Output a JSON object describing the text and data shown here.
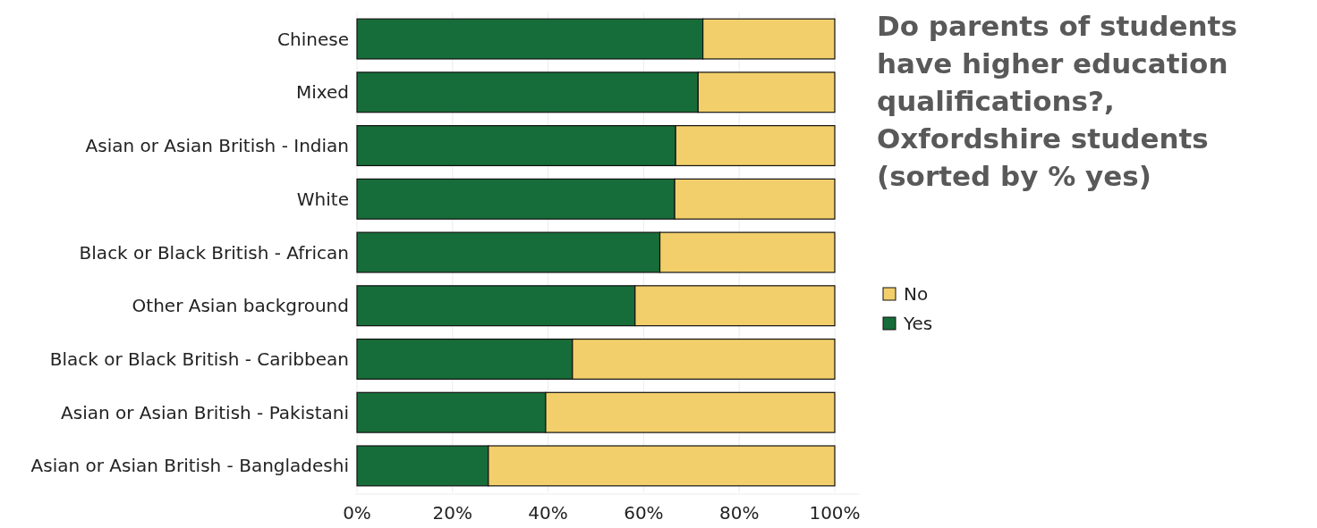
{
  "chart_data": {
    "type": "bar",
    "orientation": "horizontal",
    "stacked": true,
    "title": "Do parents of students have higher education qualifications?, Oxfordshire students (sorted by % yes)",
    "categories": [
      "Chinese",
      "Mixed",
      "Asian or Asian British - Indian",
      "White",
      "Black or Black British - African",
      "Other Asian background",
      "Black or Black British - Caribbean",
      "Asian or Asian British - Pakistani",
      "Asian or Asian British - Bangladeshi"
    ],
    "series": [
      {
        "name": "Yes",
        "color": "#176d39",
        "values": [
          72.4,
          71.4,
          66.7,
          66.5,
          63.4,
          58.2,
          45.1,
          39.5,
          27.5
        ]
      },
      {
        "name": "No",
        "color": "#f2cf6b",
        "values": [
          27.6,
          28.6,
          33.3,
          33.5,
          36.6,
          41.8,
          54.9,
          60.5,
          72.5
        ]
      }
    ],
    "xlim": [
      0,
      100
    ],
    "xticks": [
      {
        "value": 0,
        "label": "0%"
      },
      {
        "value": 20,
        "label": "20%"
      },
      {
        "value": 40,
        "label": "40%"
      },
      {
        "value": 60,
        "label": "60%"
      },
      {
        "value": 80,
        "label": "80%"
      },
      {
        "value": 100,
        "label": "100%"
      }
    ],
    "grid": "x",
    "legend": "right"
  }
}
